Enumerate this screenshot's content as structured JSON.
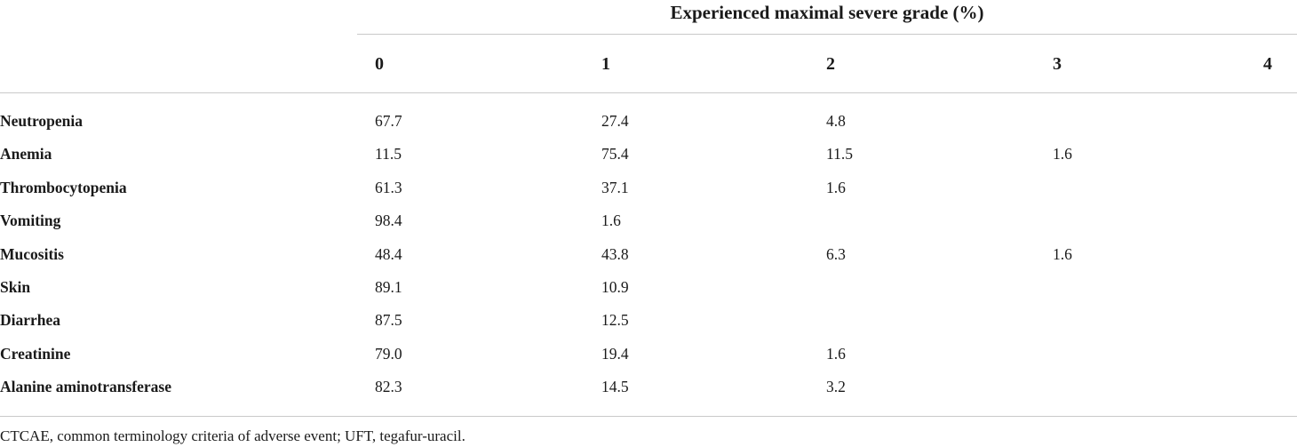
{
  "table": {
    "spanning_header": "Experienced maximal severe grade (%)",
    "grade_columns": [
      "0",
      "1",
      "2",
      "3",
      "4"
    ],
    "rows": [
      {
        "label": "Neutropenia",
        "values": [
          "67.7",
          "27.4",
          "4.8",
          "",
          ""
        ]
      },
      {
        "label": "Anemia",
        "values": [
          "11.5",
          "75.4",
          "11.5",
          "1.6",
          ""
        ]
      },
      {
        "label": "Thrombocytopenia",
        "values": [
          "61.3",
          "37.1",
          "1.6",
          "",
          ""
        ]
      },
      {
        "label": "Vomiting",
        "values": [
          "98.4",
          "1.6",
          "",
          "",
          ""
        ]
      },
      {
        "label": "Mucositis",
        "values": [
          "48.4",
          "43.8",
          "6.3",
          "1.6",
          ""
        ]
      },
      {
        "label": "Skin",
        "values": [
          "89.1",
          "10.9",
          "",
          "",
          ""
        ]
      },
      {
        "label": "Diarrhea",
        "values": [
          "87.5",
          "12.5",
          "",
          "",
          ""
        ]
      },
      {
        "label": "Creatinine",
        "values": [
          "79.0",
          "19.4",
          "1.6",
          "",
          ""
        ]
      },
      {
        "label": "Alanine aminotransferase",
        "values": [
          "82.3",
          "14.5",
          "3.2",
          "",
          ""
        ]
      }
    ],
    "footnote": "CTCAE, common terminology criteria of adverse event; UFT, tegafur-uracil."
  }
}
